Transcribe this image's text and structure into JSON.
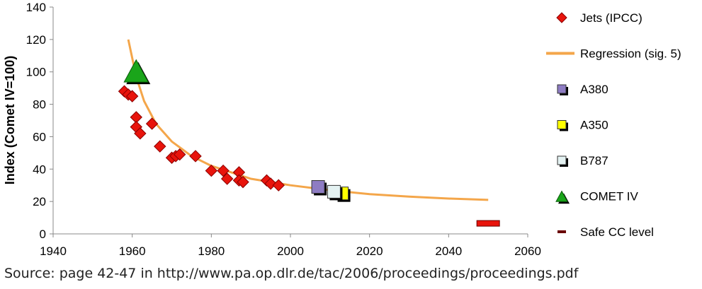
{
  "chart_data": {
    "type": "scatter",
    "title": "",
    "xlabel": "",
    "ylabel": "Index (Comet IV=100)",
    "xlim": [
      1940,
      2060
    ],
    "ylim": [
      0,
      140
    ],
    "x_ticks": [
      "1940",
      "1960",
      "1980",
      "2000",
      "2020",
      "2040",
      "2060"
    ],
    "y_ticks": [
      "0",
      "20",
      "40",
      "60",
      "80",
      "100",
      "120",
      "140"
    ],
    "grid": false,
    "legend_position": "right",
    "series": [
      {
        "name": "Jets (IPCC)",
        "marker": "diamond",
        "color": "#e8140c",
        "points": [
          {
            "x": 1958,
            "y": 88
          },
          {
            "x": 1959,
            "y": 86
          },
          {
            "x": 1960,
            "y": 85
          },
          {
            "x": 1961,
            "y": 72
          },
          {
            "x": 1961,
            "y": 66
          },
          {
            "x": 1962,
            "y": 62
          },
          {
            "x": 1965,
            "y": 68
          },
          {
            "x": 1967,
            "y": 54
          },
          {
            "x": 1970,
            "y": 47
          },
          {
            "x": 1971,
            "y": 48
          },
          {
            "x": 1972,
            "y": 49
          },
          {
            "x": 1976,
            "y": 48
          },
          {
            "x": 1980,
            "y": 39
          },
          {
            "x": 1983,
            "y": 39
          },
          {
            "x": 1984,
            "y": 34
          },
          {
            "x": 1987,
            "y": 38
          },
          {
            "x": 1987,
            "y": 33
          },
          {
            "x": 1988,
            "y": 32
          },
          {
            "x": 1994,
            "y": 33
          },
          {
            "x": 1995,
            "y": 31
          },
          {
            "x": 1997,
            "y": 30
          }
        ]
      },
      {
        "name": "Regression (sig. 5)",
        "marker": "line",
        "color": "#f4a64a",
        "points": [
          {
            "x": 1959,
            "y": 120
          },
          {
            "x": 1961,
            "y": 97
          },
          {
            "x": 1963,
            "y": 82
          },
          {
            "x": 1966,
            "y": 68
          },
          {
            "x": 1970,
            "y": 57
          },
          {
            "x": 1975,
            "y": 48
          },
          {
            "x": 1980,
            "y": 42
          },
          {
            "x": 1990,
            "y": 34
          },
          {
            "x": 2000,
            "y": 30
          },
          {
            "x": 2010,
            "y": 27
          },
          {
            "x": 2020,
            "y": 24.5
          },
          {
            "x": 2030,
            "y": 23
          },
          {
            "x": 2040,
            "y": 21.8
          },
          {
            "x": 2050,
            "y": 21
          }
        ]
      },
      {
        "name": "A380",
        "marker": "square",
        "color": "#8e7cc3",
        "points": [
          {
            "x": 2007,
            "y": 29
          }
        ]
      },
      {
        "name": "A350",
        "marker": "square",
        "color": "#ffff00",
        "points": [
          {
            "x": 2013,
            "y": 25
          }
        ]
      },
      {
        "name": "B787",
        "marker": "square",
        "color": "#e4f2f2",
        "points": [
          {
            "x": 2011,
            "y": 26
          }
        ]
      },
      {
        "name": "COMET IV",
        "marker": "triangle",
        "color": "#1aa51a",
        "points": [
          {
            "x": 1961,
            "y": 100
          }
        ]
      },
      {
        "name": "Safe CC level",
        "marker": "dash",
        "color": "#e8140c",
        "points": [
          {
            "x": 2050,
            "y": 6.5
          }
        ]
      }
    ]
  },
  "source_note": "Source: page 42-47 in http://www.pa.op.dlr.de/tac/2006/proceedings/proceedings.pdf"
}
